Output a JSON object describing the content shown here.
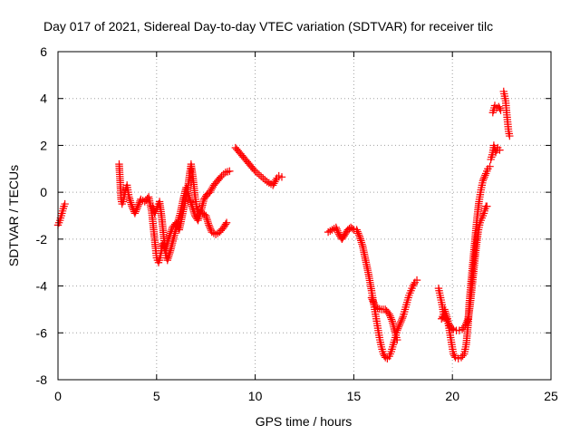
{
  "chart_data": {
    "type": "scatter",
    "title": "Day 017 of 2021, Sidereal Day-to-day VTEC variation (SDTVAR) for receiver tilc",
    "xlabel": "GPS time / hours",
    "ylabel": "SDTVAR / TECUs",
    "xlim": [
      0,
      25
    ],
    "ylim": [
      -8,
      6
    ],
    "xticks": [
      "0",
      "5",
      "10",
      "15",
      "20",
      "25"
    ],
    "yticks": [
      "-8",
      "-6",
      "-4",
      "-2",
      "0",
      "2",
      "4",
      "6"
    ],
    "grid": true,
    "marker": "+",
    "color": "#ff0000",
    "segments": [
      [
        [
          0.0,
          -1.4
        ],
        [
          0.1,
          -1.2
        ],
        [
          0.2,
          -0.9
        ],
        [
          0.3,
          -0.6
        ],
        [
          0.35,
          -0.5
        ]
      ],
      [
        [
          3.1,
          1.2
        ],
        [
          3.15,
          0.5
        ],
        [
          3.2,
          -0.3
        ],
        [
          3.25,
          -0.5
        ],
        [
          3.3,
          -0.4
        ],
        [
          3.4,
          0.0
        ],
        [
          3.5,
          0.3
        ],
        [
          3.6,
          -0.2
        ],
        [
          3.75,
          -0.6
        ],
        [
          3.9,
          -0.9
        ],
        [
          4.05,
          -0.6
        ],
        [
          4.2,
          -0.3
        ],
        [
          4.4,
          -0.4
        ],
        [
          4.6,
          -0.2
        ],
        [
          4.75,
          -0.8
        ],
        [
          4.85,
          -1.6
        ],
        [
          4.95,
          -2.4
        ],
        [
          5.0,
          -2.8
        ],
        [
          5.1,
          -3.0
        ],
        [
          5.2,
          -2.7
        ],
        [
          5.3,
          -2.2
        ],
        [
          5.45,
          -2.5
        ],
        [
          5.6,
          -2.0
        ],
        [
          5.8,
          -1.5
        ],
        [
          6.0,
          -1.3
        ],
        [
          6.15,
          -1.6
        ],
        [
          6.3,
          -1.0
        ],
        [
          6.45,
          -0.4
        ],
        [
          6.6,
          0.3
        ],
        [
          6.7,
          0.9
        ],
        [
          6.75,
          1.2
        ],
        [
          6.85,
          0.6
        ],
        [
          6.95,
          -0.2
        ],
        [
          7.05,
          -0.7
        ],
        [
          7.2,
          -0.9
        ],
        [
          7.35,
          -0.9
        ],
        [
          7.5,
          -1.0
        ],
        [
          7.65,
          -1.4
        ],
        [
          7.8,
          -1.7
        ],
        [
          8.0,
          -1.8
        ],
        [
          8.2,
          -1.7
        ],
        [
          8.4,
          -1.5
        ],
        [
          8.55,
          -1.3
        ]
      ],
      [
        [
          4.8,
          -0.6
        ],
        [
          4.9,
          -0.9
        ],
        [
          5.05,
          -0.6
        ],
        [
          5.15,
          -0.4
        ],
        [
          5.25,
          -1.0
        ],
        [
          5.35,
          -1.8
        ],
        [
          5.45,
          -2.6
        ],
        [
          5.55,
          -2.9
        ],
        [
          5.7,
          -2.5
        ],
        [
          5.85,
          -2.0
        ],
        [
          6.0,
          -1.5
        ],
        [
          6.2,
          -0.9
        ],
        [
          6.35,
          -0.3
        ],
        [
          6.5,
          0.2
        ],
        [
          6.65,
          -0.2
        ],
        [
          6.8,
          -0.6
        ],
        [
          6.95,
          -1.0
        ],
        [
          7.1,
          -1.2
        ],
        [
          7.25,
          -0.8
        ],
        [
          7.4,
          -0.3
        ],
        [
          7.55,
          -0.1
        ],
        [
          7.7,
          0.0
        ],
        [
          7.9,
          0.3
        ],
        [
          8.1,
          0.5
        ],
        [
          8.3,
          0.7
        ],
        [
          8.5,
          0.85
        ],
        [
          8.7,
          0.9
        ]
      ],
      [
        [
          9.0,
          1.9
        ],
        [
          9.2,
          1.7
        ],
        [
          9.4,
          1.5
        ],
        [
          9.6,
          1.3
        ],
        [
          9.8,
          1.1
        ],
        [
          10.0,
          0.9
        ],
        [
          10.2,
          0.75
        ],
        [
          10.4,
          0.6
        ],
        [
          10.6,
          0.45
        ],
        [
          10.8,
          0.35
        ],
        [
          10.9,
          0.3
        ],
        [
          11.0,
          0.45
        ],
        [
          11.1,
          0.6
        ],
        [
          11.2,
          0.7
        ],
        [
          11.35,
          0.65
        ]
      ],
      [
        [
          13.7,
          -1.7
        ],
        [
          13.9,
          -1.6
        ],
        [
          14.1,
          -1.5
        ],
        [
          14.25,
          -1.8
        ],
        [
          14.4,
          -2.0
        ],
        [
          14.55,
          -1.8
        ],
        [
          14.7,
          -1.6
        ],
        [
          14.85,
          -1.5
        ],
        [
          15.0,
          -1.6
        ],
        [
          15.15,
          -1.6
        ],
        [
          15.3,
          -1.9
        ],
        [
          15.45,
          -2.3
        ],
        [
          15.6,
          -2.9
        ],
        [
          15.75,
          -3.5
        ],
        [
          15.9,
          -4.2
        ],
        [
          16.0,
          -4.7
        ],
        [
          16.1,
          -5.2
        ],
        [
          16.2,
          -5.7
        ],
        [
          16.3,
          -6.2
        ],
        [
          16.4,
          -6.6
        ],
        [
          16.5,
          -6.9
        ],
        [
          16.6,
          -7.05
        ],
        [
          16.7,
          -7.1
        ],
        [
          16.8,
          -7.0
        ],
        [
          16.9,
          -6.8
        ],
        [
          17.0,
          -6.5
        ],
        [
          17.1,
          -6.2
        ],
        [
          17.2,
          -5.9
        ],
        [
          17.35,
          -5.6
        ],
        [
          17.5,
          -5.3
        ],
        [
          17.6,
          -5.0
        ],
        [
          17.7,
          -4.7
        ],
        [
          17.8,
          -4.4
        ],
        [
          17.9,
          -4.2
        ],
        [
          18.0,
          -4.0
        ],
        [
          18.1,
          -3.85
        ],
        [
          18.2,
          -3.75
        ]
      ],
      [
        [
          15.9,
          -4.5
        ],
        [
          16.05,
          -4.8
        ],
        [
          16.2,
          -4.95
        ],
        [
          16.4,
          -5.0
        ],
        [
          16.6,
          -5.0
        ],
        [
          16.8,
          -5.2
        ],
        [
          16.95,
          -5.5
        ],
        [
          17.1,
          -6.0
        ],
        [
          17.2,
          -6.3
        ]
      ],
      [
        [
          19.3,
          -4.1
        ],
        [
          19.4,
          -4.5
        ],
        [
          19.5,
          -4.9
        ],
        [
          19.55,
          -5.2
        ],
        [
          19.45,
          -5.4
        ],
        [
          19.6,
          -5.3
        ],
        [
          19.75,
          -5.5
        ],
        [
          19.9,
          -5.75
        ],
        [
          20.05,
          -5.85
        ],
        [
          20.2,
          -5.9
        ],
        [
          20.35,
          -5.9
        ],
        [
          20.5,
          -5.85
        ],
        [
          20.65,
          -5.7
        ],
        [
          20.8,
          -5.4
        ],
        [
          20.9,
          -4.8
        ],
        [
          21.0,
          -4.0
        ],
        [
          21.1,
          -3.2
        ],
        [
          21.2,
          -2.4
        ],
        [
          21.3,
          -1.7
        ],
        [
          21.4,
          -1.3
        ],
        [
          21.5,
          -1.1
        ],
        [
          21.6,
          -0.9
        ],
        [
          21.7,
          -0.6
        ],
        [
          21.75,
          -0.6
        ]
      ],
      [
        [
          19.6,
          -5.0
        ],
        [
          19.75,
          -5.4
        ],
        [
          19.85,
          -5.9
        ],
        [
          19.95,
          -6.4
        ],
        [
          20.05,
          -6.9
        ],
        [
          20.15,
          -7.05
        ],
        [
          20.3,
          -7.1
        ],
        [
          20.45,
          -7.05
        ],
        [
          20.6,
          -6.9
        ],
        [
          20.7,
          -6.5
        ],
        [
          20.8,
          -5.6
        ],
        [
          20.85,
          -4.8
        ],
        [
          20.95,
          -3.8
        ],
        [
          21.05,
          -2.9
        ],
        [
          21.15,
          -2.0
        ],
        [
          21.25,
          -1.1
        ],
        [
          21.35,
          -0.4
        ],
        [
          21.45,
          0.1
        ],
        [
          21.55,
          0.5
        ],
        [
          21.7,
          0.8
        ],
        [
          21.8,
          1.0
        ],
        [
          21.9,
          1.1
        ]
      ],
      [
        [
          21.95,
          1.4
        ],
        [
          22.05,
          1.7
        ],
        [
          22.1,
          2.0
        ],
        [
          22.2,
          1.7
        ],
        [
          22.3,
          1.9
        ],
        [
          22.4,
          1.8
        ]
      ],
      [
        [
          22.05,
          3.4
        ],
        [
          22.15,
          3.7
        ],
        [
          22.25,
          3.6
        ],
        [
          22.35,
          3.65
        ],
        [
          22.45,
          3.5
        ]
      ],
      [
        [
          22.6,
          4.3
        ],
        [
          22.7,
          3.9
        ],
        [
          22.75,
          3.4
        ],
        [
          22.8,
          3.0
        ],
        [
          22.85,
          2.6
        ],
        [
          22.9,
          2.4
        ]
      ]
    ]
  }
}
